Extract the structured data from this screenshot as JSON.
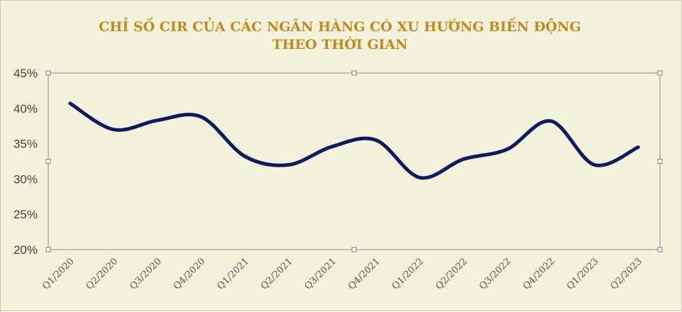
{
  "chart_data": {
    "type": "line",
    "title_lines": [
      "CHỈ SỐ CIR CỦA CÁC NGÂN HÀNG CÓ XU HƯỚNG BIẾN ĐỘNG",
      "THEO THỜI GIAN"
    ],
    "categories": [
      "Q1/2020",
      "Q2/2020",
      "Q3/2020",
      "Q4/2020",
      "Q1/2021",
      "Q2/2021",
      "Q3/2021",
      "Q4/2021",
      "Q1/2022",
      "Q2/2022",
      "Q3/2022",
      "Q4/2022",
      "Q1/2023",
      "Q2/2023"
    ],
    "series": [
      {
        "values": [
          40.7,
          37.0,
          38.3,
          38.8,
          33.2,
          32.0,
          34.6,
          35.5,
          30.2,
          32.8,
          34.2,
          38.2,
          32.0,
          34.5
        ]
      }
    ],
    "yticks": [
      "45%",
      "40%",
      "35%",
      "30%",
      "25%",
      "20%"
    ],
    "ylim": [
      20,
      45
    ],
    "grid": false,
    "line_color": "#0d1a5c"
  }
}
